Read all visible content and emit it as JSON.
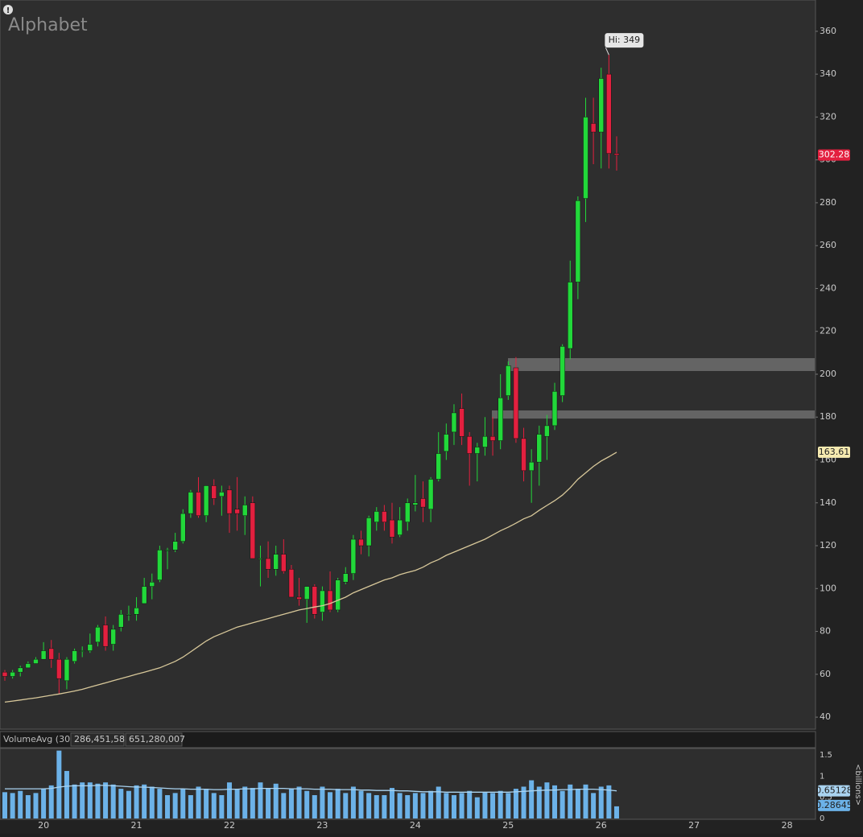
{
  "chart_data": [
    {
      "type": "candlestick",
      "title": "Alphabet",
      "categories": [
        null,
        null,
        null,
        null,
        null,
        "20",
        null,
        null,
        null,
        null,
        null,
        null,
        null,
        null,
        null,
        null,
        null,
        "21",
        null,
        null,
        null,
        null,
        null,
        null,
        null,
        null,
        null,
        null,
        null,
        "22",
        null,
        null,
        null,
        null,
        null,
        null,
        null,
        null,
        null,
        null,
        null,
        "23",
        null,
        null,
        null,
        null,
        null,
        null,
        null,
        null,
        null,
        null,
        null,
        "24",
        null,
        null,
        null,
        null,
        null,
        null,
        null,
        null,
        null,
        null,
        null,
        "25",
        null,
        null,
        null,
        null,
        null,
        null,
        null,
        null,
        null,
        null,
        null,
        "26",
        null,
        null,
        null,
        null,
        null,
        null,
        null,
        null,
        null,
        null,
        null,
        "27",
        null,
        null,
        null,
        null,
        null,
        null,
        null,
        null,
        null,
        null,
        null,
        "28"
      ],
      "open": [
        61,
        59,
        61,
        63,
        65,
        67,
        72,
        67,
        57,
        66,
        71,
        71,
        75,
        83,
        74,
        82,
        88,
        88,
        93,
        101,
        104,
        118,
        118,
        122,
        135,
        145,
        134,
        148,
        143,
        146,
        137,
        134,
        140,
        114,
        114,
        109,
        116,
        109,
        96,
        95,
        101,
        89,
        99,
        90,
        103,
        107,
        123,
        120,
        131,
        136,
        132,
        125,
        131,
        139,
        142,
        137,
        151,
        164,
        173,
        184,
        171,
        163,
        166,
        171,
        169,
        190,
        203,
        170,
        155,
        159,
        171,
        176,
        190,
        212,
        243,
        282,
        317,
        313,
        340,
        303,
        null,
        null,
        null,
        null,
        null,
        null,
        null,
        null,
        null,
        null,
        null,
        null,
        null,
        null,
        null,
        null,
        null,
        null,
        null,
        null,
        null,
        null
      ],
      "high": [
        62,
        62,
        64,
        66,
        68,
        75,
        76,
        70,
        68,
        72,
        73,
        79,
        83,
        87,
        83,
        90,
        92,
        96,
        105,
        107,
        120,
        119,
        126,
        137,
        146,
        152,
        148,
        151,
        148,
        148,
        152,
        143,
        143,
        120,
        122,
        120,
        123,
        111,
        105,
        101,
        102,
        101,
        108,
        105,
        110,
        125,
        127,
        134,
        138,
        139,
        140,
        138,
        142,
        153,
        150,
        152,
        173,
        177,
        186,
        191,
        173,
        168,
        180,
        180,
        200,
        206,
        208,
        175,
        165,
        176,
        181,
        196,
        214,
        253,
        283,
        329,
        329,
        343,
        349,
        311,
        null,
        null,
        null,
        null,
        null,
        null,
        null,
        null,
        null,
        null,
        null,
        null,
        null,
        null,
        null,
        null,
        null,
        null,
        null,
        null,
        null,
        null
      ],
      "low": [
        57,
        58,
        59,
        63,
        65,
        67,
        63,
        51,
        53,
        65,
        68,
        70,
        73,
        71,
        71,
        80,
        85,
        85,
        93,
        95,
        103,
        109,
        117,
        121,
        133,
        133,
        131,
        139,
        134,
        126,
        127,
        125,
        114,
        101,
        105,
        106,
        107,
        96,
        92,
        84,
        86,
        85,
        89,
        89,
        102,
        104,
        116,
        115,
        127,
        127,
        121,
        124,
        127,
        136,
        131,
        131,
        150,
        160,
        167,
        167,
        148,
        150,
        162,
        162,
        165,
        188,
        168,
        150,
        140,
        148,
        160,
        174,
        187,
        207,
        235,
        271,
        298,
        296,
        296,
        295,
        null,
        null,
        null,
        null,
        null,
        null,
        null,
        null,
        null,
        null,
        null,
        null,
        null,
        null,
        null,
        null,
        null,
        null,
        null,
        null,
        null,
        null
      ],
      "close": [
        59,
        61,
        63,
        65,
        67,
        71,
        67,
        58,
        67,
        71,
        71,
        74,
        82,
        73,
        81,
        88,
        88,
        91,
        101,
        103,
        118,
        118,
        122,
        135,
        145,
        134,
        148,
        142,
        145,
        135,
        135,
        139,
        114,
        114,
        109,
        116,
        108,
        96,
        95,
        101,
        88,
        99,
        90,
        104,
        107,
        123,
        120,
        133,
        136,
        131,
        124,
        132,
        140,
        140,
        138,
        151,
        163,
        172,
        182,
        171,
        163,
        166,
        171,
        169,
        189,
        204,
        170,
        155,
        159,
        172,
        176,
        192,
        213,
        243,
        281,
        320,
        313,
        338,
        303,
        302.28,
        null,
        null,
        null,
        null,
        null,
        null,
        null,
        null,
        null,
        null,
        null,
        null,
        null,
        null,
        null,
        null,
        null,
        null,
        null,
        null,
        null,
        null
      ],
      "up_color": "#22d83a",
      "down_color": "#e3203f",
      "series": [
        {
          "name": "MA",
          "color": "#d8c89a",
          "values": [
            47,
            47.5,
            48,
            48.5,
            49,
            49.6,
            50.2,
            50.8,
            51.5,
            52.2,
            53,
            54,
            55,
            56,
            57,
            58,
            59,
            60,
            61,
            62,
            63,
            64.5,
            66,
            68,
            70.5,
            73,
            75.5,
            77.5,
            79,
            80.5,
            82,
            83,
            84,
            85,
            86,
            87,
            88,
            89,
            90,
            90.7,
            91.4,
            92,
            93,
            94.5,
            96,
            98,
            99.5,
            101,
            102.5,
            104,
            105,
            106.5,
            107.5,
            108.5,
            110,
            112,
            113.5,
            115.5,
            117,
            118.5,
            120,
            121.5,
            123,
            125,
            127,
            128.6,
            130.5,
            132.5,
            134,
            136.5,
            138.8,
            141,
            143.6,
            147,
            151,
            154,
            157,
            159.5,
            161.5,
            163.61,
            null,
            null,
            null,
            null,
            null,
            null,
            null,
            null,
            null,
            null,
            null,
            null,
            null,
            null,
            null,
            null,
            null,
            null,
            null,
            null,
            null,
            null
          ]
        }
      ],
      "zones": [
        {
          "low": 201.5,
          "high": 207.5
        },
        {
          "low": 179.3,
          "high": 183.1
        }
      ],
      "hi_label": "Hi: 349",
      "ylim": [
        34.4,
        374.6
      ],
      "yticks": [
        40,
        60,
        80,
        100,
        120,
        140,
        160,
        180,
        200,
        220,
        240,
        260,
        280,
        300,
        320,
        340,
        360
      ],
      "grid": false
    },
    {
      "type": "bar",
      "title": "VolumeAvg (30)",
      "volume_text": "286,451,582",
      "avg_text": "651,280,007",
      "axis_label": "<billions>",
      "color": "#6cb2e8",
      "values": [
        0.62,
        0.6,
        0.65,
        0.55,
        0.6,
        0.7,
        0.78,
        1.6,
        1.12,
        0.8,
        0.85,
        0.85,
        0.82,
        0.85,
        0.8,
        0.7,
        0.65,
        0.78,
        0.8,
        0.75,
        0.7,
        0.55,
        0.6,
        0.7,
        0.55,
        0.75,
        0.7,
        0.6,
        0.55,
        0.85,
        0.7,
        0.75,
        0.72,
        0.85,
        0.72,
        0.82,
        0.6,
        0.7,
        0.75,
        0.65,
        0.55,
        0.75,
        0.62,
        0.7,
        0.6,
        0.75,
        0.65,
        0.6,
        0.55,
        0.55,
        0.72,
        0.6,
        0.55,
        0.6,
        0.6,
        0.65,
        0.75,
        0.6,
        0.55,
        0.6,
        0.65,
        0.5,
        0.62,
        0.6,
        0.65,
        0.6,
        0.7,
        0.75,
        0.9,
        0.75,
        0.85,
        0.78,
        0.65,
        0.8,
        0.7,
        0.8,
        0.6,
        0.75,
        0.78,
        0.28645,
        null,
        null,
        null,
        null,
        null,
        null,
        null,
        null,
        null,
        null,
        null,
        null,
        null,
        null,
        null,
        null,
        null,
        null,
        null,
        null,
        null,
        null
      ],
      "series": [
        {
          "name": "VolumeAvg",
          "color": "#a9d3f0",
          "values": [
            0.7,
            0.7,
            0.7,
            0.7,
            0.7,
            0.7,
            0.71,
            0.74,
            0.76,
            0.77,
            0.77,
            0.77,
            0.78,
            0.78,
            0.77,
            0.76,
            0.75,
            0.74,
            0.74,
            0.73,
            0.72,
            0.71,
            0.7,
            0.7,
            0.69,
            0.69,
            0.69,
            0.68,
            0.68,
            0.69,
            0.69,
            0.7,
            0.7,
            0.71,
            0.71,
            0.71,
            0.71,
            0.7,
            0.7,
            0.7,
            0.69,
            0.69,
            0.69,
            0.68,
            0.68,
            0.68,
            0.67,
            0.67,
            0.66,
            0.66,
            0.66,
            0.65,
            0.65,
            0.64,
            0.63,
            0.63,
            0.63,
            0.62,
            0.62,
            0.62,
            0.62,
            0.62,
            0.62,
            0.62,
            0.62,
            0.62,
            0.63,
            0.64,
            0.65,
            0.66,
            0.67,
            0.67,
            0.68,
            0.68,
            0.69,
            0.69,
            0.69,
            0.68,
            0.67,
            0.65128,
            null,
            null,
            null,
            null,
            null,
            null,
            null,
            null,
            null,
            null,
            null,
            null,
            null,
            null,
            null,
            null,
            null,
            null,
            null,
            null,
            null,
            null
          ]
        }
      ],
      "ylim": [
        0,
        1.65
      ],
      "yticks": [
        0,
        0.5,
        1,
        1.5
      ]
    }
  ]
}
